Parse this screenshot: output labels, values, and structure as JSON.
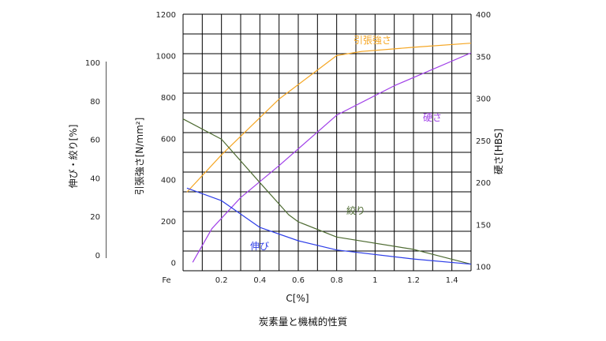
{
  "chart_data": {
    "type": "line",
    "caption": "炭素量と機械的性質",
    "xlabel": "C[%]",
    "x_tick_labels": [
      "Fe",
      "0.2",
      "0.4",
      "0.6",
      "0.8",
      "1",
      "1.2",
      "1.4"
    ],
    "x_tick_values": [
      0,
      0.2,
      0.4,
      0.6,
      0.8,
      1.0,
      1.2,
      1.4
    ],
    "xlim": [
      0,
      1.5
    ],
    "axes": {
      "strength": {
        "label": "引張強さ[N/mm²]",
        "ticks": [
          0,
          200,
          400,
          600,
          800,
          1000,
          1200
        ],
        "range": [
          -40,
          1200
        ]
      },
      "elongation": {
        "label": "伸び・絞り[%]",
        "ticks": [
          0,
          20,
          40,
          60,
          80,
          100
        ]
      },
      "hardness": {
        "label": "硬さ[HBS]",
        "ticks": [
          100,
          150,
          200,
          250,
          300,
          350,
          400
        ],
        "range": [
          95,
          400
        ]
      }
    },
    "series": [
      {
        "name": "引張強さ",
        "color": "#f5a623",
        "axis": "strength",
        "points": [
          [
            0.02,
            340
          ],
          [
            0.2,
            520
          ],
          [
            0.5,
            790
          ],
          [
            0.8,
            1000
          ],
          [
            0.93,
            1020
          ],
          [
            1.2,
            1040
          ],
          [
            1.5,
            1060
          ]
        ]
      },
      {
        "name": "硬さ",
        "color": "#a040e8",
        "axis": "hardness",
        "points": [
          [
            0.05,
            105
          ],
          [
            0.15,
            145
          ],
          [
            0.3,
            182
          ],
          [
            0.5,
            220
          ],
          [
            0.8,
            280
          ],
          [
            1.1,
            315
          ],
          [
            1.5,
            354
          ]
        ]
      },
      {
        "name": "絞り",
        "color": "#4e6b32",
        "axis": "elongation",
        "points": [
          [
            0,
            70.8
          ],
          [
            0.2,
            60.3
          ],
          [
            0.4,
            37.8
          ],
          [
            0.55,
            21.1
          ],
          [
            0.6,
            17.4
          ],
          [
            0.8,
            9.5
          ],
          [
            1.2,
            3.1
          ],
          [
            1.5,
            -4.6
          ]
        ]
      },
      {
        "name": "伸び",
        "color": "#2e3ee8",
        "axis": "elongation",
        "points": [
          [
            0.02,
            34.9
          ],
          [
            0.2,
            28.4
          ],
          [
            0.4,
            14.5
          ],
          [
            0.6,
            7.6
          ],
          [
            0.8,
            2.8
          ],
          [
            1.2,
            -1.9
          ],
          [
            1.5,
            -4.6
          ]
        ]
      }
    ]
  }
}
